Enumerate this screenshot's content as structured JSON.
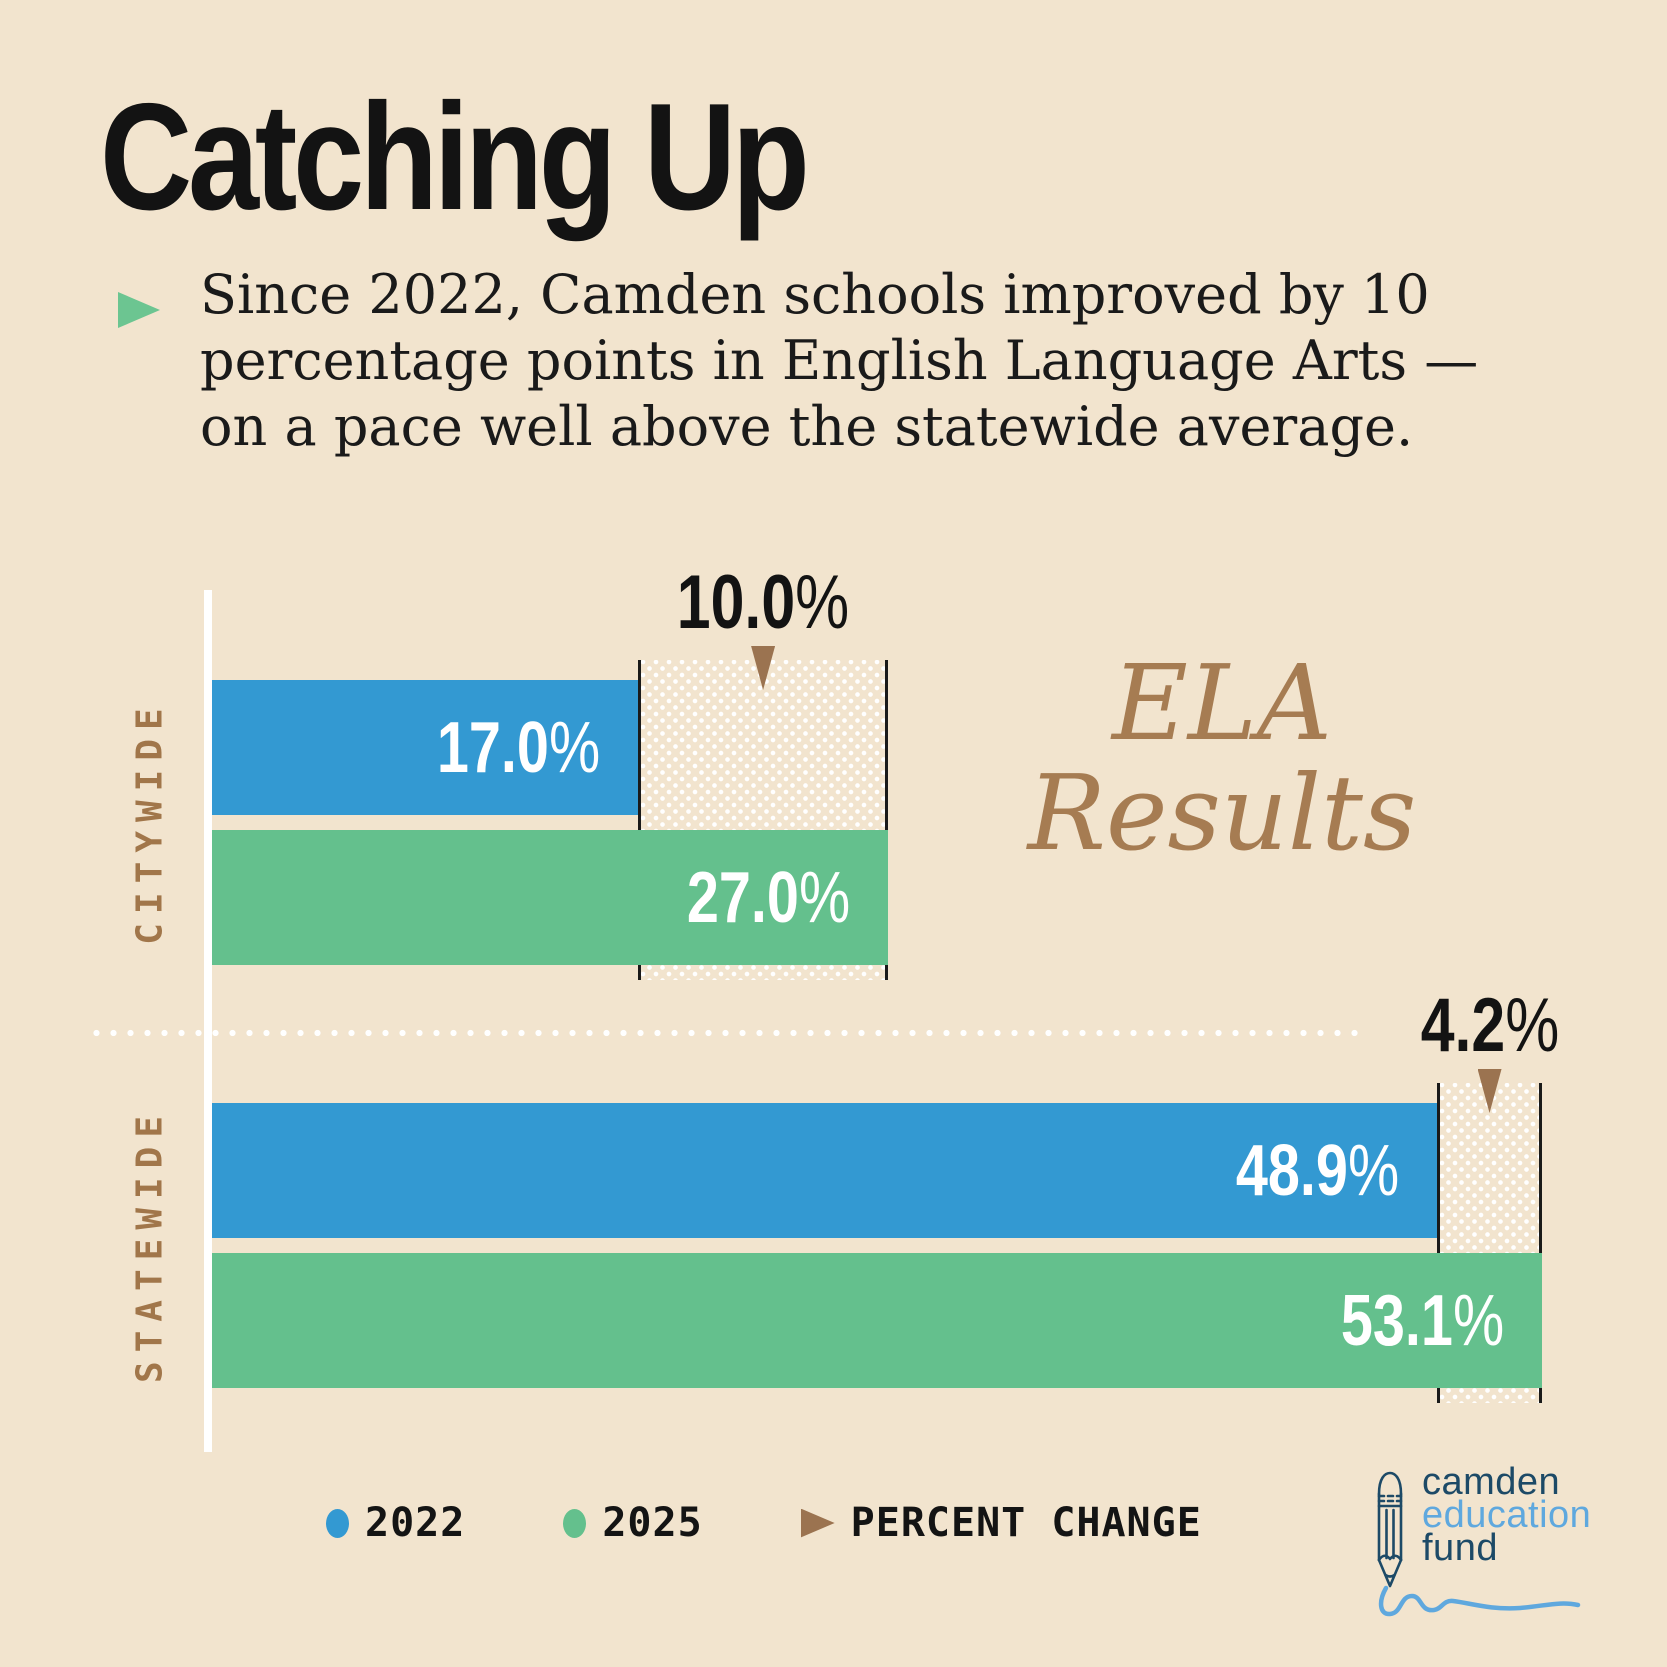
{
  "title": "Catching Up",
  "subtitle": {
    "lines": [
      "Since 2022, Camden schools improved by 10",
      "percentage points in English Language Arts —",
      "on a pace well above the statewide average."
    ]
  },
  "chart_data": {
    "type": "bar",
    "orientation": "horizontal",
    "title": "ELA Results",
    "title_lines": [
      "ELA",
      "Results"
    ],
    "categories": [
      "CITYWIDE",
      "STATEWIDE"
    ],
    "series": [
      {
        "name": "2022",
        "color": "#3399d2",
        "values": [
          17.0,
          48.9
        ],
        "labels": [
          "17.0",
          "48.9"
        ]
      },
      {
        "name": "2025",
        "color": "#64c08d",
        "values": [
          27.0,
          53.1
        ],
        "labels": [
          "27.0",
          "53.1"
        ]
      }
    ],
    "percent_change": [
      "10.0",
      "4.2"
    ],
    "unit": "%",
    "xlim": [
      0,
      55
    ],
    "grid": false,
    "legend_position": "bottom"
  },
  "legend": {
    "items": [
      {
        "label": "2022",
        "marker": "dot",
        "color": "#3399d2"
      },
      {
        "label": "2025",
        "marker": "dot",
        "color": "#64c08d"
      },
      {
        "label": "PERCENT CHANGE",
        "marker": "arrow-right",
        "color": "#9b7350"
      }
    ]
  },
  "logo": {
    "line1": "camden",
    "line2": "education",
    "line3": "fund",
    "icon": "pencil-icon"
  },
  "colors": {
    "background": "#f2e4ce",
    "bar_2022": "#3399d2",
    "bar_2025": "#64c08d",
    "accent_brown": "#9b7350",
    "label_brown": "#a1764a",
    "chart_title_brown": "#a67c52",
    "text_black": "#131313",
    "logo_navy": "#1d4a67",
    "logo_blue": "#5fa8de"
  }
}
